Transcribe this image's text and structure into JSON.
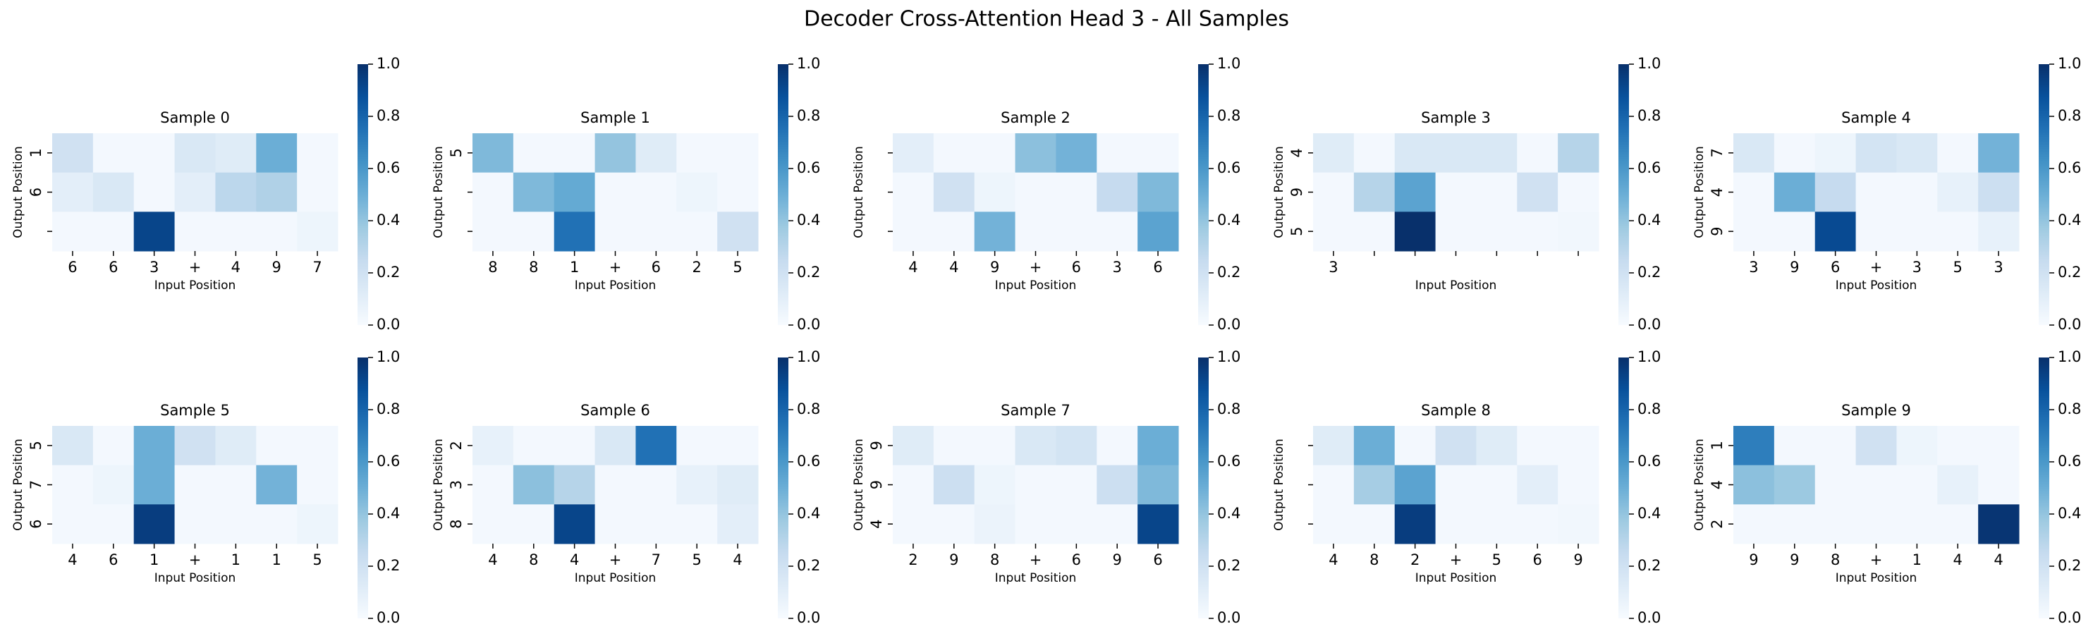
{
  "title": "Decoder Cross-Attention Head 3 - All Samples",
  "chart_data": [
    {
      "type": "heatmap",
      "title": "Sample 0",
      "xlabel": "Input Position",
      "ylabel": "Output Position",
      "x": [
        "6",
        "6",
        "3",
        "+",
        "4",
        "9",
        "7"
      ],
      "y": [
        "1",
        "6",
        null
      ],
      "values": [
        [
          0.2,
          0.02,
          0.02,
          0.15,
          0.12,
          0.5,
          0.02
        ],
        [
          0.1,
          0.15,
          0.02,
          0.1,
          0.28,
          0.32,
          0.02
        ],
        [
          0.02,
          0.02,
          0.92,
          0.02,
          0.02,
          0.02,
          0.05
        ]
      ],
      "zlim": [
        0,
        1
      ],
      "zticks": [
        {
          "value": 0,
          "label": "0.0"
        },
        0.2,
        0.4,
        0.6,
        0.8,
        {
          "value": 1,
          "label": "1.0"
        }
      ],
      "colormap": [
        "#f7fbff",
        "#deebf7",
        "#c6dbef",
        "#9ecae1",
        "#6baed6",
        "#4292c6",
        "#2171b5",
        "#08519c",
        "#08306b"
      ]
    },
    {
      "type": "heatmap",
      "title": "Sample 1",
      "xlabel": "Input Position",
      "ylabel": "Output Position",
      "x": [
        "8",
        "8",
        "1",
        "+",
        "6",
        "2",
        "5"
      ],
      "y": [
        "5",
        null,
        null
      ],
      "values": [
        [
          0.45,
          0.02,
          0.02,
          0.4,
          0.12,
          0.02,
          0.02
        ],
        [
          0.02,
          0.45,
          0.52,
          0.02,
          0.02,
          0.05,
          0.02
        ],
        [
          0.02,
          0.02,
          0.75,
          0.02,
          0.02,
          0.02,
          0.2
        ]
      ],
      "zlim": [
        0,
        1
      ],
      "zticks": [
        {
          "value": 0,
          "label": "0.0"
        },
        0.2,
        0.4,
        0.6,
        0.8,
        {
          "value": 1,
          "label": "1.0"
        }
      ],
      "colormap": [
        "#f7fbff",
        "#deebf7",
        "#c6dbef",
        "#9ecae1",
        "#6baed6",
        "#4292c6",
        "#2171b5",
        "#08519c",
        "#08306b"
      ]
    },
    {
      "type": "heatmap",
      "title": "Sample 2",
      "xlabel": "Input Position",
      "ylabel": "Output Position",
      "x": [
        "4",
        "4",
        "9",
        "+",
        "6",
        "3",
        "6"
      ],
      "y": [
        null,
        null,
        null
      ],
      "values": [
        [
          0.1,
          0.02,
          0.02,
          0.42,
          0.48,
          0.02,
          0.02
        ],
        [
          0.02,
          0.2,
          0.05,
          0.02,
          0.02,
          0.25,
          0.45
        ],
        [
          0.02,
          0.02,
          0.48,
          0.02,
          0.02,
          0.02,
          0.55
        ]
      ],
      "zlim": [
        0,
        1
      ],
      "zticks": [
        {
          "value": 0,
          "label": "0.0"
        },
        0.2,
        0.4,
        0.6,
        0.8,
        {
          "value": 1,
          "label": "1.0"
        }
      ],
      "colormap": [
        "#f7fbff",
        "#deebf7",
        "#c6dbef",
        "#9ecae1",
        "#6baed6",
        "#4292c6",
        "#2171b5",
        "#08519c",
        "#08306b"
      ]
    },
    {
      "type": "heatmap",
      "title": "Sample 3",
      "xlabel": "Input Position",
      "ylabel": "Output Position",
      "x": [
        "3",
        null,
        null,
        null,
        null,
        null,
        null
      ],
      "y": [
        "4",
        "9",
        "5"
      ],
      "values": [
        [
          0.12,
          0.02,
          0.15,
          0.15,
          0.15,
          0.02,
          0.3
        ],
        [
          0.02,
          0.3,
          0.55,
          0.02,
          0.02,
          0.2,
          0.02
        ],
        [
          0.02,
          0.02,
          1.0,
          0.02,
          0.02,
          0.02,
          0.03
        ]
      ],
      "zlim": [
        0,
        1
      ],
      "zticks": [
        {
          "value": 0,
          "label": "0.0"
        },
        0.2,
        0.4,
        0.6,
        0.8,
        {
          "value": 1,
          "label": "1.0"
        }
      ],
      "colormap": [
        "#f7fbff",
        "#deebf7",
        "#c6dbef",
        "#9ecae1",
        "#6baed6",
        "#4292c6",
        "#2171b5",
        "#08519c",
        "#08306b"
      ]
    },
    {
      "type": "heatmap",
      "title": "Sample 4",
      "xlabel": "Input Position",
      "ylabel": "Output Position",
      "x": [
        "3",
        "9",
        "6",
        "+",
        "3",
        "5",
        "3"
      ],
      "y": [
        "7",
        "4",
        "9"
      ],
      "values": [
        [
          0.15,
          0.02,
          0.05,
          0.18,
          0.15,
          0.02,
          0.48
        ],
        [
          0.02,
          0.5,
          0.25,
          0.02,
          0.02,
          0.08,
          0.22
        ],
        [
          0.02,
          0.02,
          0.9,
          0.02,
          0.02,
          0.02,
          0.08
        ]
      ],
      "zlim": [
        0,
        1
      ],
      "zticks": [
        {
          "value": 0,
          "label": "0.0"
        },
        0.2,
        0.4,
        0.6,
        0.8,
        {
          "value": 1,
          "label": "1.0"
        }
      ],
      "colormap": [
        "#f7fbff",
        "#deebf7",
        "#c6dbef",
        "#9ecae1",
        "#6baed6",
        "#4292c6",
        "#2171b5",
        "#08519c",
        "#08306b"
      ]
    },
    {
      "type": "heatmap",
      "title": "Sample 5",
      "xlabel": "Input Position",
      "ylabel": "Output Position",
      "x": [
        "4",
        "6",
        "1",
        "+",
        "1",
        "1",
        "5"
      ],
      "y": [
        "5",
        "7",
        "6"
      ],
      "values": [
        [
          0.15,
          0.02,
          0.5,
          0.2,
          0.12,
          0.02,
          0.02
        ],
        [
          0.02,
          0.05,
          0.5,
          0.02,
          0.02,
          0.48,
          0.02
        ],
        [
          0.02,
          0.02,
          0.95,
          0.02,
          0.02,
          0.02,
          0.05
        ]
      ],
      "zlim": [
        0,
        1
      ],
      "zticks": [
        {
          "value": 0,
          "label": "0.0"
        },
        0.2,
        0.4,
        0.6,
        0.8,
        {
          "value": 1,
          "label": "1.0"
        }
      ],
      "colormap": [
        "#f7fbff",
        "#deebf7",
        "#c6dbef",
        "#9ecae1",
        "#6baed6",
        "#4292c6",
        "#2171b5",
        "#08519c",
        "#08306b"
      ]
    },
    {
      "type": "heatmap",
      "title": "Sample 6",
      "xlabel": "Input Position",
      "ylabel": "Output Position",
      "x": [
        "4",
        "8",
        "4",
        "+",
        "7",
        "5",
        "4"
      ],
      "y": [
        "2",
        "3",
        "8"
      ],
      "values": [
        [
          0.08,
          0.02,
          0.02,
          0.15,
          0.75,
          0.02,
          0.02
        ],
        [
          0.02,
          0.42,
          0.3,
          0.02,
          0.02,
          0.08,
          0.12
        ],
        [
          0.02,
          0.02,
          0.92,
          0.02,
          0.02,
          0.02,
          0.1
        ]
      ],
      "zlim": [
        0,
        1
      ],
      "zticks": [
        {
          "value": 0,
          "label": "0.0"
        },
        0.2,
        0.4,
        0.6,
        0.8,
        {
          "value": 1,
          "label": "1.0"
        }
      ],
      "colormap": [
        "#f7fbff",
        "#deebf7",
        "#c6dbef",
        "#9ecae1",
        "#6baed6",
        "#4292c6",
        "#2171b5",
        "#08519c",
        "#08306b"
      ]
    },
    {
      "type": "heatmap",
      "title": "Sample 7",
      "xlabel": "Input Position",
      "ylabel": "Output Position",
      "x": [
        "2",
        "9",
        "8",
        "+",
        "6",
        "9",
        "6"
      ],
      "y": [
        "9",
        "9",
        "4"
      ],
      "values": [
        [
          0.12,
          0.02,
          0.02,
          0.15,
          0.18,
          0.02,
          0.5
        ],
        [
          0.02,
          0.22,
          0.05,
          0.02,
          0.02,
          0.22,
          0.45
        ],
        [
          0.02,
          0.02,
          0.06,
          0.02,
          0.02,
          0.02,
          0.92
        ]
      ],
      "zlim": [
        0,
        1
      ],
      "zticks": [
        {
          "value": 0,
          "label": "0.0"
        },
        0.2,
        0.4,
        0.6,
        0.8,
        {
          "value": 1,
          "label": "1.0"
        }
      ],
      "colormap": [
        "#f7fbff",
        "#deebf7",
        "#c6dbef",
        "#9ecae1",
        "#6baed6",
        "#4292c6",
        "#2171b5",
        "#08519c",
        "#08306b"
      ]
    },
    {
      "type": "heatmap",
      "title": "Sample 8",
      "xlabel": "Input Position",
      "ylabel": "Output Position",
      "x": [
        "4",
        "8",
        "2",
        "+",
        "5",
        "6",
        "9"
      ],
      "y": [
        null,
        null,
        null
      ],
      "values": [
        [
          0.12,
          0.5,
          0.02,
          0.2,
          0.12,
          0.02,
          0.02
        ],
        [
          0.02,
          0.35,
          0.55,
          0.02,
          0.02,
          0.1,
          0.02
        ],
        [
          0.02,
          0.02,
          0.95,
          0.02,
          0.02,
          0.02,
          0.03
        ]
      ],
      "zlim": [
        0,
        1
      ],
      "zticks": [
        {
          "value": 0,
          "label": "0.0"
        },
        0.2,
        0.4,
        0.6,
        0.8,
        {
          "value": 1,
          "label": "1.0"
        }
      ],
      "colormap": [
        "#f7fbff",
        "#deebf7",
        "#c6dbef",
        "#9ecae1",
        "#6baed6",
        "#4292c6",
        "#2171b5",
        "#08519c",
        "#08306b"
      ]
    },
    {
      "type": "heatmap",
      "title": "Sample 9",
      "xlabel": "Input Position",
      "ylabel": "Output Position",
      "x": [
        "9",
        "9",
        "8",
        "+",
        "1",
        "4",
        "4"
      ],
      "y": [
        "1",
        "4",
        "2"
      ],
      "values": [
        [
          0.7,
          0.02,
          0.02,
          0.2,
          0.05,
          0.02,
          0.02
        ],
        [
          0.42,
          0.38,
          0.02,
          0.02,
          0.02,
          0.08,
          0.02
        ],
        [
          0.02,
          0.02,
          0.02,
          0.02,
          0.02,
          0.02,
          0.98
        ]
      ],
      "zlim": [
        0,
        1
      ],
      "zticks": [
        {
          "value": 0,
          "label": "0.0"
        },
        0.2,
        0.4,
        0.6,
        0.8,
        {
          "value": 1,
          "label": "1.0"
        }
      ],
      "colormap": [
        "#f7fbff",
        "#deebf7",
        "#c6dbef",
        "#9ecae1",
        "#6baed6",
        "#4292c6",
        "#2171b5",
        "#08519c",
        "#08306b"
      ]
    }
  ]
}
